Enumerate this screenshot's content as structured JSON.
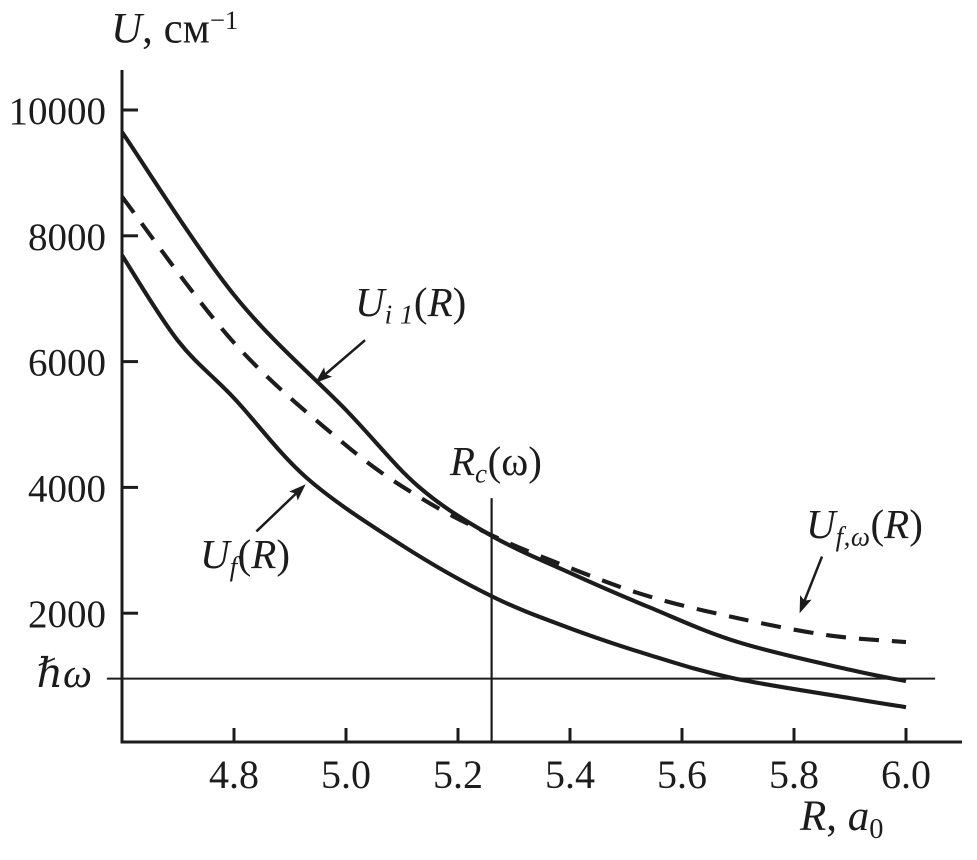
{
  "figure": {
    "background": "#ffffff",
    "ink_color": "#1c1c1c"
  },
  "labels": {
    "y_axis_title": {
      "var": "U",
      "rest": ", см",
      "sup": "−1"
    },
    "x_axis_title": {
      "var": "R",
      "rest": ", ",
      "unit_var": "a",
      "sub": "0"
    },
    "hbar_omega": "ℏω",
    "curve_i1": {
      "var": "U",
      "sub": "i 1",
      "open": "(",
      "arg": "R",
      "close": ")"
    },
    "curve_f": {
      "var": "U",
      "sub": "f",
      "open": "(",
      "arg": "R",
      "close": ")"
    },
    "curve_fw": {
      "var": "U",
      "sub": "f,ω",
      "open": "(",
      "arg": "R",
      "close": ")"
    },
    "rc": {
      "var": "R",
      "sub": "c",
      "open": "(",
      "arg": "ω",
      "close": ")"
    }
  },
  "chart_data": {
    "type": "line",
    "title": "",
    "xlabel": "R, a₀",
    "ylabel": "U, см⁻¹",
    "grid": false,
    "x_axis": {
      "min": 4.6,
      "max": 6.1,
      "ticks": [
        4.8,
        5.0,
        5.2,
        5.4,
        5.6,
        5.8,
        6.0
      ],
      "tick_labels": [
        "4.8",
        "5.0",
        "5.2",
        "5.4",
        "5.6",
        "5.8",
        "6.0"
      ]
    },
    "y_axis": {
      "min": -50,
      "max": 10640,
      "ticks": [
        10000,
        8000,
        6000,
        4000,
        2000
      ],
      "tick_labels": [
        "10000",
        "8000",
        "6000",
        "4000",
        "2000"
      ]
    },
    "series": [
      {
        "name": "U_i1(R)",
        "line_style": "solid",
        "x": [
          4.6,
          4.8,
          5.0,
          5.13,
          5.26,
          5.4,
          5.54,
          5.7,
          5.9,
          6.0
        ],
        "y": [
          9650,
          7060,
          5230,
          4010,
          3230,
          2640,
          2100,
          1540,
          1100,
          920
        ]
      },
      {
        "name": "U_f,ω(R)",
        "line_style": "dashed",
        "x": [
          4.6,
          4.8,
          5.0,
          5.13,
          5.26,
          5.4,
          5.54,
          5.7,
          5.86,
          6.0
        ],
        "y": [
          8620,
          6300,
          4670,
          3850,
          3240,
          2720,
          2270,
          1920,
          1650,
          1540
        ]
      },
      {
        "name": "U_f(R)",
        "line_style": "solid",
        "x": [
          4.6,
          4.7,
          4.8,
          4.93,
          5.1,
          5.26,
          5.4,
          5.54,
          5.69,
          5.9,
          6.0
        ],
        "y": [
          7690,
          6330,
          5420,
          4150,
          3080,
          2270,
          1760,
          1340,
          970,
          650,
          505
        ]
      }
    ],
    "hline": {
      "label": "ℏω",
      "u": 960,
      "x_start": 4.573,
      "x_end": 6.052
    },
    "vline": {
      "label": "R_c(ω)",
      "r": 5.26,
      "u_top": 3830,
      "u_bottom": -50
    },
    "annotations": {
      "arrows": [
        {
          "target": "U_i1(R)",
          "from": {
            "r": 5.034,
            "u": 6340
          },
          "to": {
            "r": 4.945,
            "u": 5660
          }
        },
        {
          "target": "U_f(R)",
          "from": {
            "r": 4.84,
            "u": 3300
          },
          "to": {
            "r": 4.928,
            "u": 4050
          }
        },
        {
          "target": "U_f,ω(R)",
          "from": {
            "r": 5.85,
            "u": 2900
          },
          "to": {
            "r": 5.81,
            "u": 2000
          }
        }
      ]
    }
  }
}
